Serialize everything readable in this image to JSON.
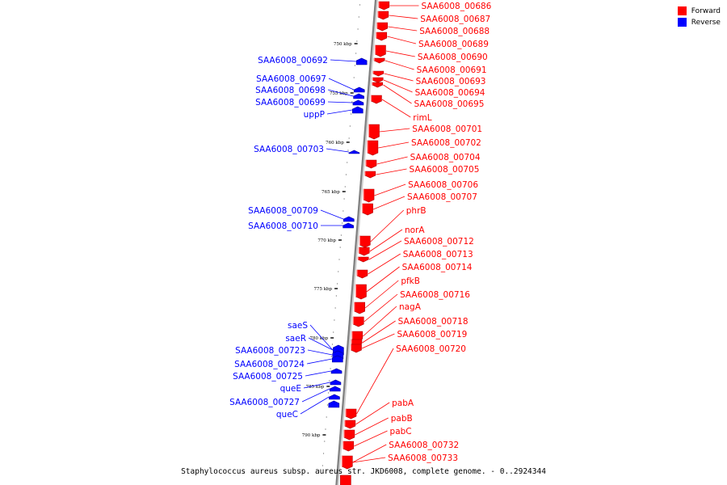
{
  "legend": {
    "forward_label": "Forward",
    "reverse_label": "Reverse",
    "forward_color": "#ff0000",
    "reverse_color": "#0000ff"
  },
  "caption": "Staphylococcus aureus subsp. aureus str. JKD6008, complete genome. - 0..2924344",
  "backbone_color": "#808080",
  "kbp_ticks": [
    "750 kbp",
    "755 kbp",
    "760 kbp",
    "765 kbp",
    "770 kbp",
    "775 kbp",
    "780 kbp",
    "785 kbp",
    "790 kbp"
  ],
  "forward_genes": [
    "SAA6008_00686",
    "SAA6008_00687",
    "SAA6008_00688",
    "SAA6008_00689",
    "SAA6008_00690",
    "SAA6008_00691",
    "SAA6008_00693",
    "SAA6008_00694",
    "SAA6008_00695",
    "rimL",
    "SAA6008_00701",
    "SAA6008_00702",
    "SAA6008_00704",
    "SAA6008_00705",
    "SAA6008_00706",
    "SAA6008_00707",
    "phrB",
    "norA",
    "SAA6008_00712",
    "SAA6008_00713",
    "SAA6008_00714",
    "pfkB",
    "SAA6008_00716",
    "nagA",
    "SAA6008_00718",
    "SAA6008_00719",
    "SAA6008_00720",
    "pabA",
    "pabB",
    "pabC",
    "SAA6008_00732",
    "SAA6008_00733"
  ],
  "reverse_genes": [
    "SAA6008_00692",
    "SAA6008_00697",
    "SAA6008_00698",
    "SAA6008_00699",
    "uppP",
    "SAA6008_00703",
    "SAA6008_00709",
    "SAA6008_00710",
    "saeS",
    "saeR",
    "SAA6008_00723",
    "SAA6008_00724",
    "SAA6008_00725",
    "queE",
    "SAA6008_00727",
    "queC"
  ]
}
